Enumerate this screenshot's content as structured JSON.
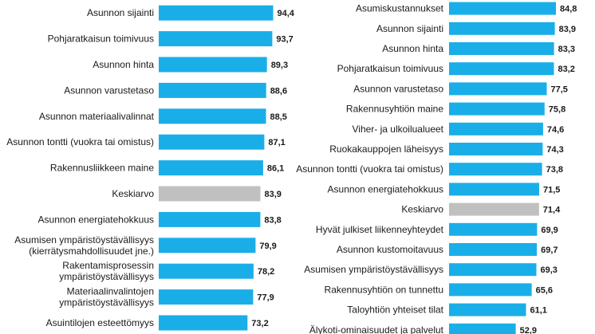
{
  "chart_data": [
    {
      "type": "bar",
      "orientation": "horizontal",
      "title": "",
      "xlabel": "",
      "ylabel": "",
      "grid": false,
      "xlim": [
        0,
        100
      ],
      "categories": [
        [
          "Asunnon sijainti"
        ],
        [
          "Pohjaratkaisun toimivuus"
        ],
        [
          "Asunnon hinta"
        ],
        [
          "Asunnon varustetaso"
        ],
        [
          "Asunnon materiaalivalinnat"
        ],
        [
          "Asunnon tontti (vuokra tai omistus)"
        ],
        [
          "Rakennusliikkeen maine"
        ],
        [
          "Keskiarvo"
        ],
        [
          "Asunnon energiatehokkuus"
        ],
        [
          "Asumisen ympäristöystävällisyys",
          "(kierrätysmahdollisuudet jne.)"
        ],
        [
          "Rakentamisprosessin",
          "ympäristöystävällisyys"
        ],
        [
          "Materiaalinvalintojen",
          "ympäristöystävällisyys"
        ],
        [
          "Asuintilojen esteettömyys"
        ]
      ],
      "values": [
        94.4,
        93.7,
        89.3,
        88.6,
        88.5,
        87.1,
        86.1,
        83.9,
        83.8,
        79.9,
        78.2,
        77.9,
        73.2
      ],
      "value_labels": [
        "94,4",
        "93,7",
        "89,3",
        "88,6",
        "88,5",
        "87,1",
        "86,1",
        "83,9",
        "83,8",
        "79,9",
        "78,2",
        "77,9",
        "73,2"
      ],
      "highlight_index": 7,
      "bar_color": "#1aaee8",
      "highlight_color": "#c0c0c0"
    },
    {
      "type": "bar",
      "orientation": "horizontal",
      "title": "",
      "xlabel": "",
      "ylabel": "",
      "grid": false,
      "xlim": [
        0,
        100
      ],
      "categories": [
        [
          "Asumiskustannukset"
        ],
        [
          "Asunnon sijainti"
        ],
        [
          "Asunnon hinta"
        ],
        [
          "Pohjaratkaisun toimivuus"
        ],
        [
          "Asunnon varustetaso"
        ],
        [
          "Rakennusyhtiön maine"
        ],
        [
          "Viher- ja ulkoilualueet"
        ],
        [
          "Ruokakauppojen läheisyys"
        ],
        [
          "Asunnon tontti (vuokra tai omistus)"
        ],
        [
          "Asunnon energiatehokkuus"
        ],
        [
          "Keskiarvo"
        ],
        [
          "Hyvät julkiset liikenneyhteydet"
        ],
        [
          "Asunnon kustomoitavuus"
        ],
        [
          "Asumisen ympäristöystävällisyys"
        ],
        [
          "Rakennusyhtiön on tunnettu"
        ],
        [
          "Taloyhtiön yhteiset tilat"
        ],
        [
          "Älykoti-ominaisuudet ja palvelut"
        ]
      ],
      "values": [
        84.8,
        83.9,
        83.3,
        83.2,
        77.5,
        75.8,
        74.6,
        74.3,
        73.8,
        71.5,
        71.4,
        69.9,
        69.7,
        69.3,
        65.6,
        61.1,
        52.9
      ],
      "value_labels": [
        "84,8",
        "83,9",
        "83,3",
        "83,2",
        "77,5",
        "75,8",
        "74,6",
        "74,3",
        "73,8",
        "71,5",
        "71,4",
        "69,9",
        "69,7",
        "69,3",
        "65,6",
        "61,1",
        "52,9"
      ],
      "highlight_index": 10,
      "bar_color": "#1aaee8",
      "highlight_color": "#c0c0c0"
    }
  ]
}
